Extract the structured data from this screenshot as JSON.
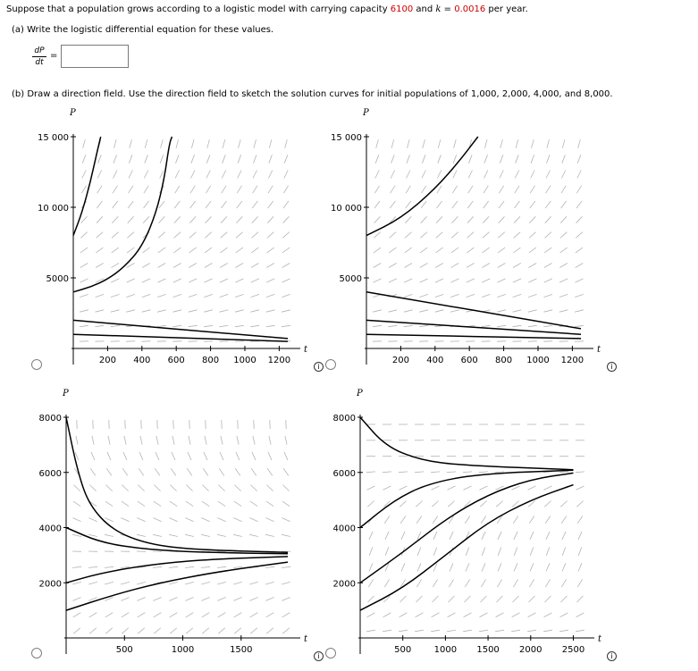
{
  "question": {
    "intro_a": "Suppose that a population grows according to a logistic model with carrying capacity ",
    "carrying_capacity": "6100",
    "intro_b": " and ",
    "k_symbol": "k",
    "intro_c": " = ",
    "k_value": "0.0016",
    "intro_d": " per year.",
    "part_a": "(a)   Write the logistic differential equation for these values.",
    "deriv_num": "dP",
    "deriv_den": "dt",
    "equals": "=",
    "answer_value": "",
    "part_b": "(b)   Draw a direction field. Use the direction field to sketch the solution curves for initial populations of 1,000, 2,000, 4,000, and 8,000."
  },
  "icons": {
    "radio": "radio-button",
    "info": "info-icon",
    "info_glyph": "i"
  },
  "colors": {
    "curve": "#000000",
    "field": "#b4b4b4",
    "axis": "#000000",
    "accent_red": "#cc0000"
  },
  "chart_data": [
    {
      "type": "line",
      "panel": "top-left",
      "xlabel": "t",
      "ylabel": "P",
      "xticks": [
        "200",
        "400",
        "600",
        "800",
        "1000",
        "1200"
      ],
      "yticks": [
        "5000",
        "10 000",
        "15 000"
      ],
      "xlim": [
        0,
        1250
      ],
      "ylim": [
        0,
        15000
      ],
      "field_slope_sign": 1,
      "series": [
        {
          "points": [
            [
              0,
              1000
            ],
            [
              1250,
              500
            ]
          ]
        },
        {
          "points": [
            [
              0,
              2000
            ],
            [
              1250,
              700
            ]
          ]
        },
        {
          "points": [
            [
              0,
              4000
            ],
            [
              100,
              4350
            ],
            [
              200,
              4900
            ],
            [
              300,
              5800
            ],
            [
              400,
              7200
            ],
            [
              480,
              9500
            ],
            [
              530,
              12000
            ],
            [
              560,
              14500
            ],
            [
              575,
              15000
            ]
          ]
        },
        {
          "points": [
            [
              0,
              8000
            ],
            [
              50,
              9600
            ],
            [
              100,
              11800
            ],
            [
              140,
              14000
            ],
            [
              160,
              15000
            ]
          ]
        }
      ]
    },
    {
      "type": "line",
      "panel": "top-right",
      "xlabel": "t",
      "ylabel": "P",
      "xticks": [
        "200",
        "400",
        "600",
        "800",
        "1000",
        "1200"
      ],
      "yticks": [
        "5000",
        "10 000",
        "15 000"
      ],
      "xlim": [
        0,
        1250
      ],
      "ylim": [
        0,
        15000
      ],
      "field_slope_sign": 1,
      "series": [
        {
          "points": [
            [
              0,
              1000
            ],
            [
              1250,
              700
            ]
          ]
        },
        {
          "points": [
            [
              0,
              2000
            ],
            [
              1250,
              1000
            ]
          ]
        },
        {
          "points": [
            [
              0,
              4000
            ],
            [
              1250,
              1400
            ]
          ]
        },
        {
          "points": [
            [
              0,
              8000
            ],
            [
              200,
              9200
            ],
            [
              400,
              11300
            ],
            [
              550,
              13400
            ],
            [
              650,
              15000
            ]
          ]
        }
      ]
    },
    {
      "type": "line",
      "panel": "bottom-left",
      "xlabel": "t",
      "ylabel": "P",
      "xticks": [
        "500",
        "1000",
        "1500"
      ],
      "yticks": [
        "2000",
        "4000",
        "6000",
        "8000"
      ],
      "xlim": [
        0,
        1900
      ],
      "ylim": [
        0,
        8000
      ],
      "field_slope_sign": -1,
      "series": [
        {
          "points": [
            [
              0,
              8000
            ],
            [
              100,
              6000
            ],
            [
              200,
              4800
            ],
            [
              400,
              3900
            ],
            [
              700,
              3400
            ],
            [
              1100,
              3200
            ],
            [
              1900,
              3100
            ]
          ]
        },
        {
          "points": [
            [
              0,
              4000
            ],
            [
              300,
              3450
            ],
            [
              700,
              3200
            ],
            [
              1200,
              3100
            ],
            [
              1900,
              3050
            ]
          ]
        },
        {
          "points": [
            [
              0,
              2000
            ],
            [
              300,
              2350
            ],
            [
              700,
              2650
            ],
            [
              1200,
              2850
            ],
            [
              1900,
              2950
            ]
          ]
        },
        {
          "points": [
            [
              0,
              1000
            ],
            [
              400,
              1550
            ],
            [
              800,
              2000
            ],
            [
              1300,
              2400
            ],
            [
              1900,
              2750
            ]
          ]
        }
      ]
    },
    {
      "type": "line",
      "panel": "bottom-right",
      "xlabel": "t",
      "ylabel": "P",
      "xticks": [
        "500",
        "1000",
        "1500",
        "2000",
        "2500"
      ],
      "yticks": [
        "2000",
        "4000",
        "6000",
        "8000"
      ],
      "xlim": [
        0,
        2600
      ],
      "ylim": [
        0,
        8000
      ],
      "field_slope_sign": 1,
      "series": [
        {
          "points": [
            [
              0,
              8000
            ],
            [
              300,
              6950
            ],
            [
              700,
              6450
            ],
            [
              1200,
              6250
            ],
            [
              2500,
              6100
            ]
          ]
        },
        {
          "points": [
            [
              0,
              4000
            ],
            [
              400,
              5000
            ],
            [
              800,
              5600
            ],
            [
              1400,
              5950
            ],
            [
              2500,
              6080
            ]
          ]
        },
        {
          "points": [
            [
              0,
              2000
            ],
            [
              500,
              3100
            ],
            [
              1000,
              4300
            ],
            [
              1500,
              5200
            ],
            [
              2000,
              5750
            ],
            [
              2500,
              5980
            ]
          ]
        },
        {
          "points": [
            [
              0,
              1000
            ],
            [
              500,
              1800
            ],
            [
              1000,
              3000
            ],
            [
              1500,
              4200
            ],
            [
              2000,
              5000
            ],
            [
              2500,
              5550
            ]
          ]
        }
      ]
    }
  ]
}
